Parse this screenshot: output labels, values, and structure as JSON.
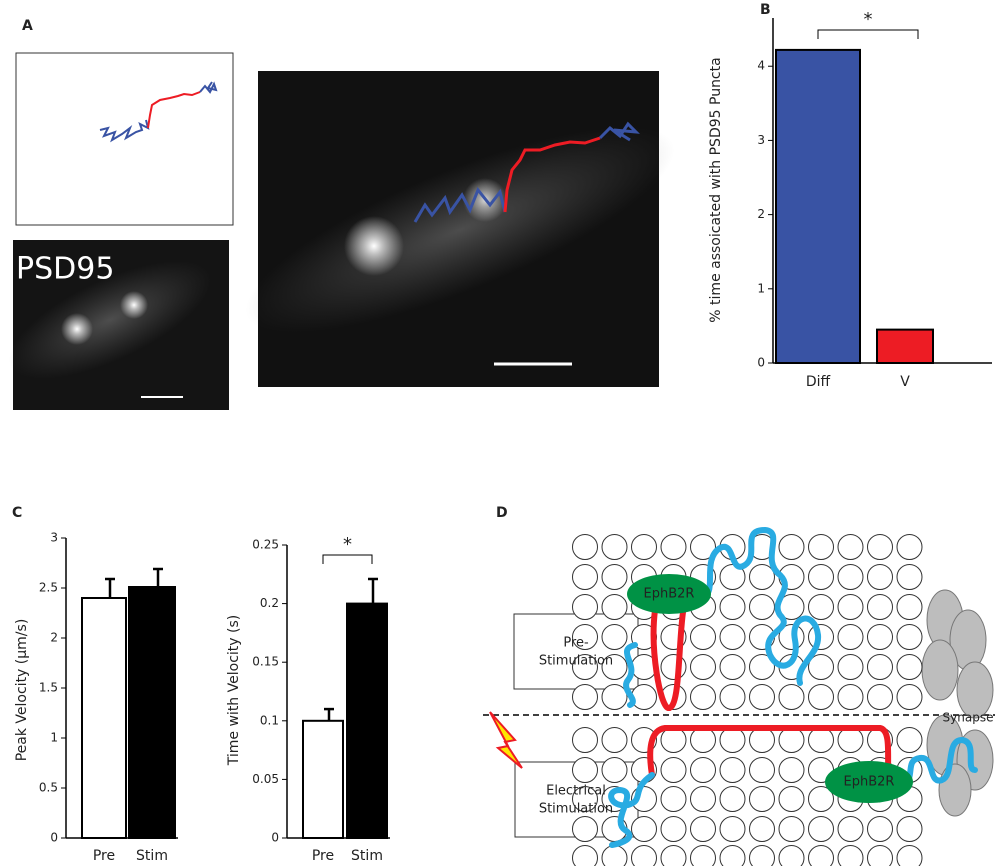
{
  "panel_labels": [
    "A",
    "B",
    "C",
    "D"
  ],
  "panel_a": {
    "image_label": "PSD95"
  },
  "chart_data": [
    {
      "type": "bar",
      "y_label": "% time assoicated with PSD95 Puncta",
      "categories": [
        "Diff",
        "V"
      ],
      "values": [
        4.22,
        0.45
      ],
      "colors": [
        "#3953a4",
        "#ed1c24"
      ],
      "ylim": [
        0,
        4.65
      ],
      "yticks": [
        0,
        1,
        2,
        3,
        4
      ],
      "significance": "*"
    },
    {
      "type": "bar",
      "y_label": "Peak Velocity (μm/s)",
      "categories": [
        "Pre",
        "Stim"
      ],
      "values": [
        2.4,
        2.51
      ],
      "errors": [
        0.19,
        0.18
      ],
      "colors": [
        "#ffffff",
        "#000000"
      ],
      "ylim": [
        0,
        3
      ],
      "yticks": [
        0,
        0.5,
        1,
        1.5,
        2,
        2.5,
        3
      ]
    },
    {
      "type": "bar",
      "y_label": "Time with Velocity (s)",
      "categories": [
        "Pre",
        "Stim"
      ],
      "values": [
        0.1,
        0.2
      ],
      "errors": [
        0.01,
        0.021
      ],
      "colors": [
        "#ffffff",
        "#000000"
      ],
      "ylim": [
        0,
        0.25
      ],
      "yticks": [
        0,
        0.05,
        0.1,
        0.15,
        0.2,
        0.25
      ],
      "significance": "*"
    }
  ],
  "diagram": {
    "pre_stimulation": [
      "Pre-",
      "Stimulation"
    ],
    "electrical_stimulation": [
      "Electrical",
      "Stimulation"
    ],
    "receptor_labels": [
      "EphB2R",
      "EphB2R"
    ],
    "synapse_label": "Synapse"
  }
}
